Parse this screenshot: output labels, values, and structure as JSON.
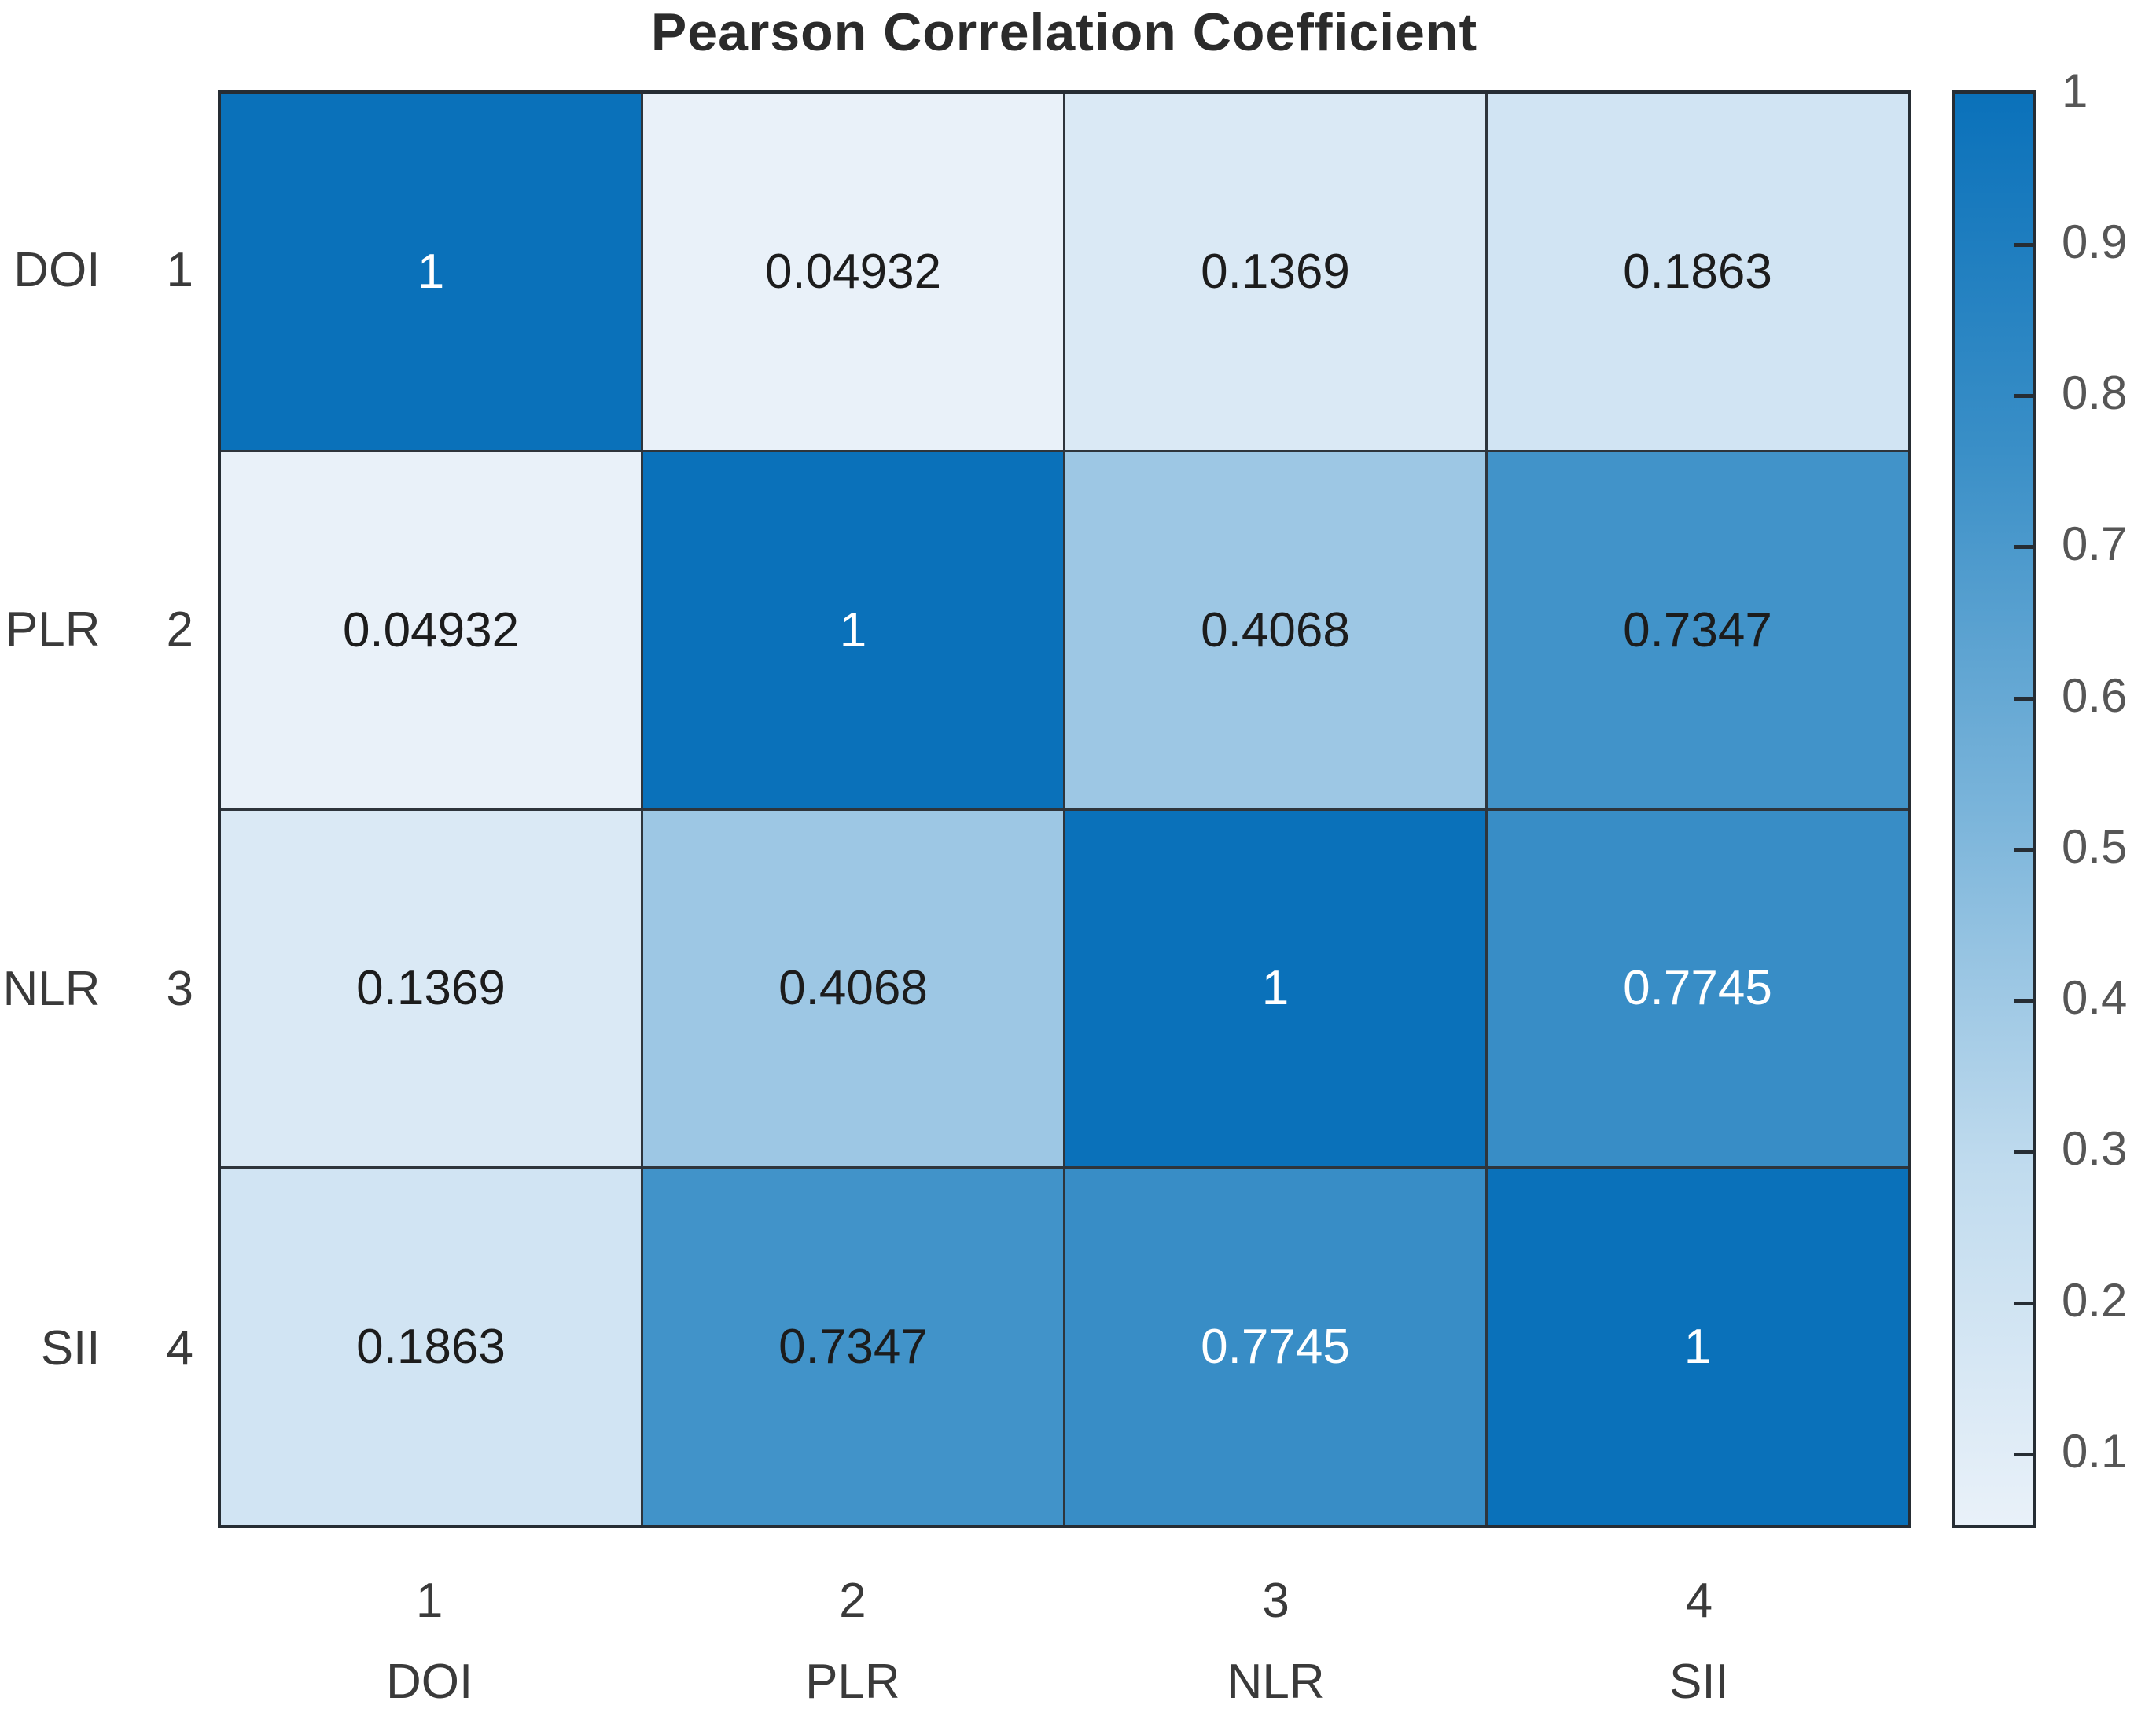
{
  "chart_data": {
    "type": "heatmap",
    "title": "Pearson Correlation Coefficient",
    "variables": [
      "DOI",
      "PLR",
      "NLR",
      "SII"
    ],
    "axis_index_labels": [
      "1",
      "2",
      "3",
      "4"
    ],
    "matrix": [
      [
        1,
        0.04932,
        0.1369,
        0.1863
      ],
      [
        0.04932,
        1,
        0.4068,
        0.7347
      ],
      [
        0.1369,
        0.4068,
        1,
        0.7745
      ],
      [
        0.1863,
        0.7347,
        0.7745,
        1
      ]
    ],
    "cell_labels": [
      [
        "1",
        "0.04932",
        "0.1369",
        "0.1863"
      ],
      [
        "0.04932",
        "1",
        "0.4068",
        "0.7347"
      ],
      [
        "0.1369",
        "0.4068",
        "1",
        "0.7745"
      ],
      [
        "0.1863",
        "0.7347",
        "0.7745",
        "1"
      ]
    ],
    "cell_label_colors": [
      [
        "light",
        "dark",
        "dark",
        "dark"
      ],
      [
        "dark",
        "light",
        "dark",
        "dark"
      ],
      [
        "dark",
        "dark",
        "light",
        "light"
      ],
      [
        "dark",
        "dark",
        "light",
        "light"
      ]
    ],
    "colorbar": {
      "min": 0.04932,
      "max": 1,
      "tick_labels": [
        "1",
        "0.9",
        "0.8",
        "0.7",
        "0.6",
        "0.5",
        "0.4",
        "0.3",
        "0.2",
        "0.1"
      ],
      "tick_values": [
        1,
        0.9,
        0.8,
        0.7,
        0.6,
        0.5,
        0.4,
        0.3,
        0.2,
        0.1
      ],
      "position": "right"
    },
    "colormap_stops": [
      "#e9f1f9",
      "#c0dbee",
      "#7ab4da",
      "#3a8fc7",
      "#0a71ba"
    ],
    "grid": "on",
    "xlabel": "",
    "ylabel": ""
  },
  "colors": {
    "cell_text_dark": "#1c1c1c",
    "cell_text_light": "#ffffff",
    "grid_line": "#2e353c",
    "axis_tick_label": "#3a3a3a",
    "colorbar_tick_label": "#565656",
    "title_text": "#2b2b2b",
    "background": "#ffffff"
  }
}
